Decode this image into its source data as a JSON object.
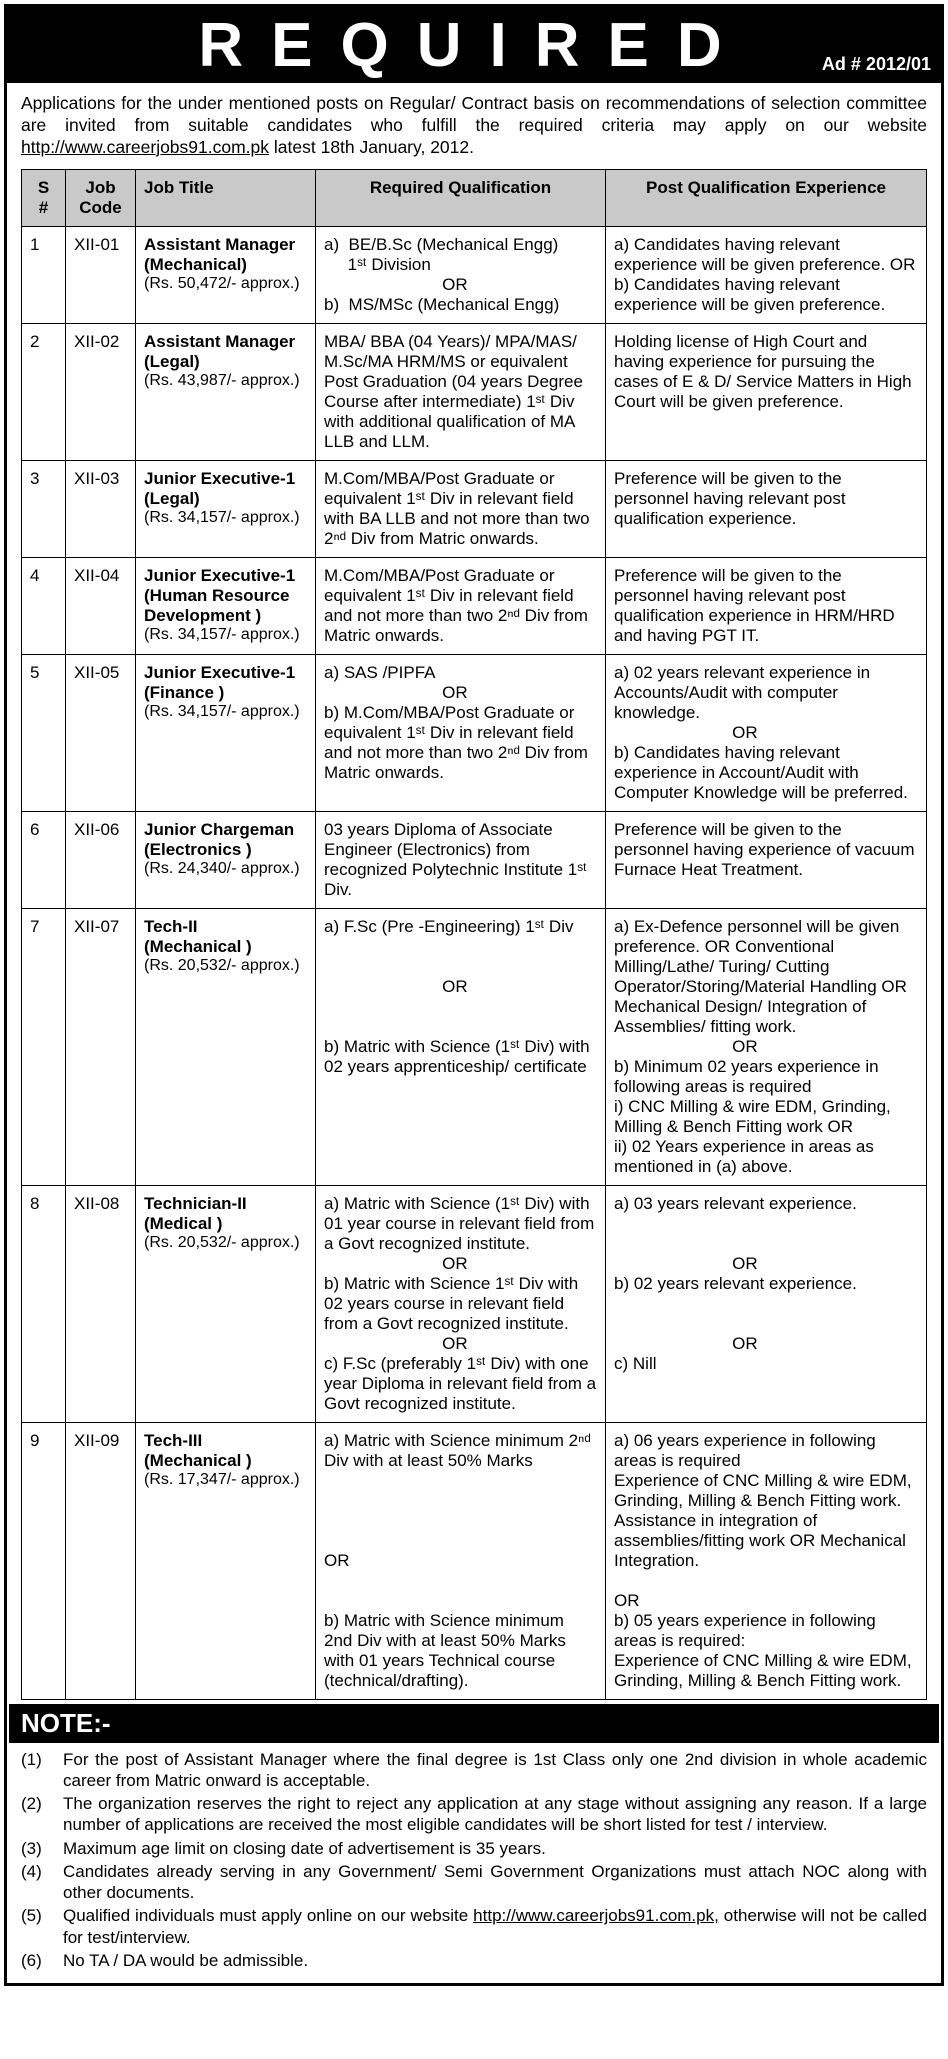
{
  "header": {
    "title": "REQUIRED",
    "ad_number": "Ad # 2012/01"
  },
  "intro": {
    "text_before_link": "Applications for the under mentioned posts on Regular/ Contract basis on recommendations of selection committee are invited from suitable candidates who fulfill the required criteria may apply on our website ",
    "link_text": "http://www.careerjobs91.com.pk",
    "text_after_link": " latest 18th January, 2012."
  },
  "table": {
    "headers": {
      "sn": "S\n#",
      "code": "Job Code",
      "title": "Job Title",
      "qual": "Required Qualification",
      "exp": "Post Qualification Experience"
    },
    "rows": [
      {
        "sn": "1",
        "code": "XII-01",
        "title": "Assistant Manager\n(Mechanical)",
        "salary": "(Rs. 50,472/- approx.)",
        "qual": "a)  BE/B.Sc (Mechanical Engg)\n     1ˢᵗ Division\n                         OR\nb)  MS/MSc (Mechanical Engg)",
        "exp": "a) Candidates having relevant experience will be given preference. OR\nb) Candidates having relevant experience will be given preference."
      },
      {
        "sn": "2",
        "code": "XII-02",
        "title": "Assistant Manager\n(Legal)",
        "salary": "(Rs. 43,987/- approx.)",
        "qual": "MBA/ BBA (04 Years)/ MPA/MAS/ M.Sc/MA HRM/MS or equivalent Post Graduation (04 years Degree Course after intermediate) 1ˢᵗ Div with additional qualification of MA LLB and LLM.",
        "exp": "Holding license of High Court and having experience for pursuing the cases of E & D/ Service Matters in High Court will be given preference."
      },
      {
        "sn": "3",
        "code": "XII-03",
        "title": "Junior Executive-1\n(Legal)",
        "salary": "(Rs. 34,157/- approx.)",
        "qual": "M.Com/MBA/Post Graduate or equivalent 1ˢᵗ Div in relevant field with BA LLB and not more than two 2ⁿᵈ Div from Matric onwards.",
        "exp": "Preference will be given to the personnel having relevant post qualification experience."
      },
      {
        "sn": "4",
        "code": "XII-04",
        "title": "Junior Executive-1\n(Human Resource Development )",
        "salary": "(Rs. 34,157/- approx.)",
        "qual": "M.Com/MBA/Post Graduate or equivalent 1ˢᵗ Div in relevant field and not more than two 2ⁿᵈ Div from Matric onwards.",
        "exp": "Preference will be given to the personnel having relevant post qualification experience in HRM/HRD and having PGT IT."
      },
      {
        "sn": "5",
        "code": "XII-05",
        "title": "Junior Executive-1\n(Finance )",
        "salary": "(Rs. 34,157/- approx.)",
        "qual": "a) SAS /PIPFA\n                         OR\nb) M.Com/MBA/Post Graduate or equivalent 1ˢᵗ Div in relevant field and not more than two 2ⁿᵈ Div from Matric onwards.",
        "exp": "a) 02 years relevant experience in Accounts/Audit with computer knowledge.\n                         OR\nb) Candidates having relevant experience in Account/Audit with Computer Knowledge will be preferred."
      },
      {
        "sn": "6",
        "code": "XII-06",
        "title": "Junior Chargeman\n(Electronics )",
        "salary": "(Rs. 24,340/- approx.)",
        "qual": "03 years Diploma of Associate Engineer (Electronics) from recognized Polytechnic Institute 1ˢᵗ Div.",
        "exp": "Preference will be given to the personnel having experience of vacuum Furnace Heat Treatment."
      },
      {
        "sn": "7",
        "code": "XII-07",
        "title": "Tech-II\n(Mechanical )",
        "salary": "(Rs. 20,532/- approx.)",
        "qual": "a) F.Sc (Pre -Engineering) 1ˢᵗ Div\n\n\n                         OR\n\n\nb) Matric with Science (1ˢᵗ Div) with 02 years apprenticeship/ certificate",
        "exp": "a) Ex-Defence personnel will be given preference. OR Conventional Milling/Lathe/ Turing/ Cutting Operator/Storing/Material Handling OR Mechanical Design/ Integration of Assemblies/ fitting work.\n                         OR\nb) Minimum 02 years experience in following areas is required\ni) CNC Milling & wire EDM, Grinding, Milling & Bench Fitting work OR\nii) 02 Years experience in areas as mentioned in (a) above."
      },
      {
        "sn": "8",
        "code": "XII-08",
        "title": "Technician-II\n(Medical )",
        "salary": "(Rs. 20,532/- approx.)",
        "qual": "a) Matric with Science (1ˢᵗ Div) with 01 year course in relevant field from a Govt recognized institute.\n                         OR\nb) Matric with Science 1ˢᵗ Div with 02 years course in relevant field from a Govt recognized institute.\n                         OR\nc) F.Sc (preferably 1ˢᵗ Div) with one year Diploma in relevant field from a Govt recognized institute.",
        "exp": "a) 03 years relevant experience.\n\n\n                         OR\nb) 02 years relevant experience.\n\n\n                         OR\nc) Nill"
      },
      {
        "sn": "9",
        "code": "XII-09",
        "title": "Tech-III\n(Mechanical )",
        "salary": "(Rs. 17,347/- approx.)",
        "qual": "a) Matric with Science minimum 2ⁿᵈ Div with at least 50% Marks\n\n\n\n\nOR\n\n\nb) Matric with Science minimum 2nd Div with at least 50% Marks with 01 years Technical course (technical/drafting).",
        "exp": "a) 06 years experience in following areas is required\nExperience of CNC Milling & wire EDM, Grinding, Milling & Bench Fitting work. Assistance in integration of assemblies/fitting work OR Mechanical Integration.\n\nOR\nb) 05 years experience in following areas is required:\nExperience of CNC Milling & wire EDM, Grinding, Milling & Bench Fitting work."
      }
    ]
  },
  "note": {
    "header": "NOTE:-",
    "items": [
      {
        "num": "(1)",
        "text": "For the post of Assistant Manager where the final degree is 1st Class only one 2nd division in whole academic career from Matric onward is acceptable."
      },
      {
        "num": "(2)",
        "text": "The organization reserves the right to reject any application at any stage without assigning any reason. If a large number of applications are received the most eligible candidates will be short listed for test / interview."
      },
      {
        "num": "(3)",
        "text": "Maximum age limit on closing date of advertisement is 35 years."
      },
      {
        "num": "(4)",
        "text": "Candidates already serving in any Government/ Semi Government Organizations must attach NOC along with other documents."
      },
      {
        "num": "(5)",
        "text_before_link": "Qualified individuals must apply online on our website ",
        "link_text": "http://www.careerjobs91.com.pk,",
        "text_after_link": " otherwise will not be called for test/interview."
      },
      {
        "num": "(6)",
        "text": "No TA / DA would be admissible."
      }
    ]
  }
}
